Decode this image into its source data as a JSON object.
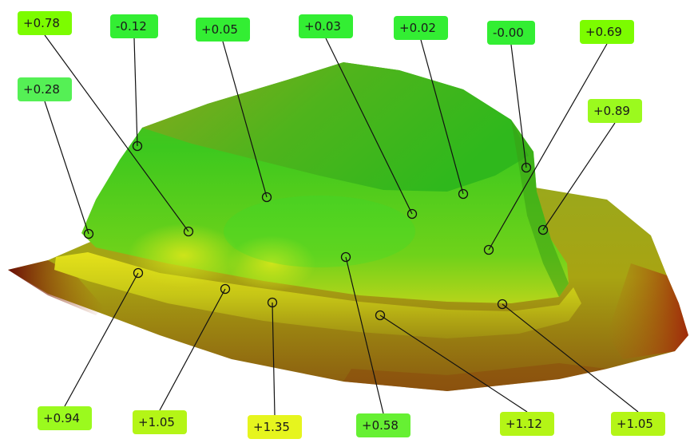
{
  "deviation_map": {
    "annotations": [
      {
        "id": "a1",
        "label": "+0.78",
        "color": "#7CFC00"
      },
      {
        "id": "a2",
        "label": "-0.12",
        "color": "#33EE33"
      },
      {
        "id": "a3",
        "label": "+0.05",
        "color": "#33EE33"
      },
      {
        "id": "a4",
        "label": "+0.03",
        "color": "#33EE33"
      },
      {
        "id": "a5",
        "label": "+0.02",
        "color": "#33EE33"
      },
      {
        "id": "a6",
        "label": "-0.00",
        "color": "#33EE33"
      },
      {
        "id": "a7",
        "label": "+0.69",
        "color": "#7CFC00"
      },
      {
        "id": "a8",
        "label": "+0.28",
        "color": "#55F055"
      },
      {
        "id": "a9",
        "label": "+0.89",
        "color": "#9BFA1E"
      },
      {
        "id": "a10",
        "label": "+0.94",
        "color": "#9BFA1E"
      },
      {
        "id": "a11",
        "label": "+1.05",
        "color": "#B4F516"
      },
      {
        "id": "a12",
        "label": "+1.35",
        "color": "#E6F51E"
      },
      {
        "id": "a13",
        "label": "+0.58",
        "color": "#66F033"
      },
      {
        "id": "a14",
        "label": "+1.12",
        "color": "#B4F516"
      },
      {
        "id": "a15",
        "label": "+1.05",
        "color": "#B4F516"
      }
    ]
  }
}
